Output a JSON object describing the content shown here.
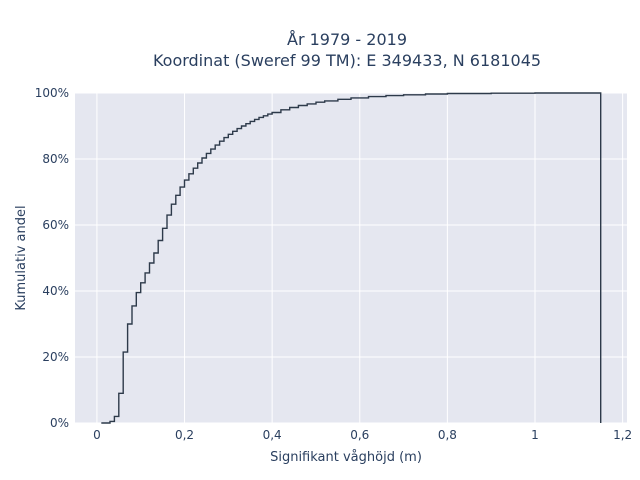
{
  "chart_data": {
    "type": "line",
    "line_shape": "step (empirical CDF)",
    "title_lines": [
      "År 1979 - 2019",
      "Koordinat (Sweref 99 TM): E 349433, N 6181045"
    ],
    "xlabel": "Signifikant våghöjd (m)",
    "ylabel": "Kumulativ andel",
    "xlim": [
      -0.05,
      1.21
    ],
    "ylim": [
      0,
      100
    ],
    "x_ticks": [
      0,
      0.2,
      0.4,
      0.6,
      0.8,
      1.0,
      1.2
    ],
    "x_tick_labels": [
      "0",
      "0,2",
      "0,4",
      "0,6",
      "0,8",
      "1",
      "1,2"
    ],
    "y_ticks": [
      0,
      20,
      40,
      60,
      80,
      100
    ],
    "y_tick_labels": [
      "0%",
      "20%",
      "40%",
      "60%",
      "80%",
      "100%"
    ],
    "grid": true,
    "legend": false,
    "colors": {
      "line": "#2d3a4a",
      "plot_bg": "#e5e7f0",
      "grid": "#ffffff",
      "text": "#2a3f5f"
    },
    "series": [
      {
        "x": [
          0.01,
          0.03,
          0.04,
          0.05,
          0.06,
          0.07,
          0.08,
          0.09,
          0.1,
          0.11,
          0.12,
          0.13,
          0.14,
          0.15,
          0.16,
          0.17,
          0.18,
          0.19,
          0.2,
          0.21,
          0.22,
          0.23,
          0.24,
          0.25,
          0.26,
          0.27,
          0.28,
          0.29,
          0.3,
          0.31,
          0.32,
          0.33,
          0.34,
          0.35,
          0.36,
          0.37,
          0.38,
          0.39,
          0.4,
          0.42,
          0.44,
          0.46,
          0.48,
          0.5,
          0.52,
          0.55,
          0.58,
          0.62,
          0.66,
          0.7,
          0.75,
          0.8,
          0.9,
          1.0,
          1.15
        ],
        "y": [
          0,
          0.5,
          2,
          9,
          21.5,
          30,
          35.5,
          39.5,
          42.5,
          45.5,
          48.5,
          51.5,
          55.3,
          59,
          63,
          66.3,
          69,
          71.5,
          73.6,
          75.5,
          77.2,
          78.8,
          80.3,
          81.7,
          83,
          84.2,
          85.4,
          86.5,
          87.5,
          88.4,
          89.2,
          90,
          90.7,
          91.4,
          92,
          92.6,
          93.1,
          93.6,
          94.1,
          94.9,
          95.6,
          96.2,
          96.7,
          97.2,
          97.6,
          98.1,
          98.5,
          98.9,
          99.2,
          99.45,
          99.7,
          99.85,
          99.95,
          100,
          100
        ]
      }
    ]
  }
}
